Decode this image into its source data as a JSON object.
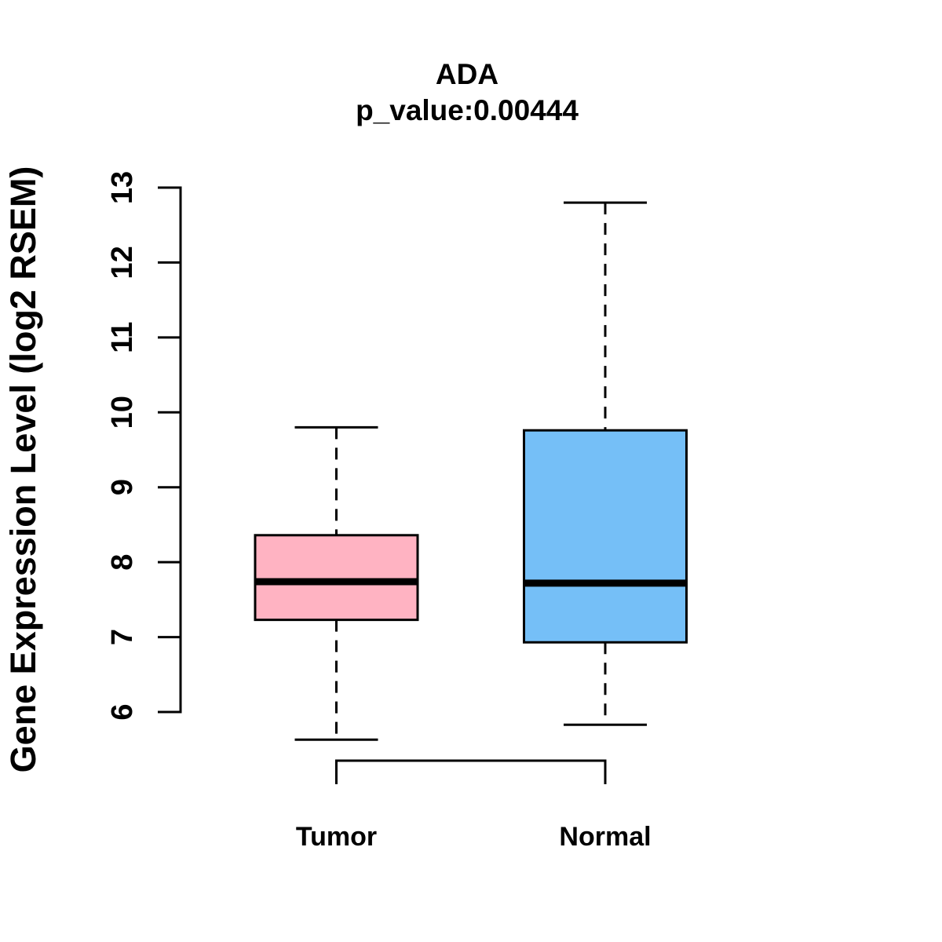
{
  "chart_data": {
    "type": "boxplot",
    "title": "ADA",
    "subtitle": "p_value:0.00444",
    "p_value": 0.00444,
    "gene": "ADA",
    "ylabel": "Gene Expression Level (log2 RSEM)",
    "xlabel": "",
    "ylim": [
      6,
      13
    ],
    "yticks": [
      6,
      7,
      8,
      9,
      10,
      11,
      12,
      13
    ],
    "grid": false,
    "legend": "none",
    "categories": [
      "Tumor",
      "Normal"
    ],
    "series": [
      {
        "name": "Tumor",
        "color": "#ffb3c2",
        "whisker_low": 5.63,
        "q1": 7.23,
        "median": 7.74,
        "q3": 8.36,
        "whisker_high": 9.8
      },
      {
        "name": "Normal",
        "color": "#75bff7",
        "whisker_low": 5.83,
        "q1": 6.93,
        "median": 7.72,
        "q3": 9.76,
        "whisker_high": 12.8
      }
    ],
    "comparison_bracket": {
      "from": "Tumor",
      "to": "Normal"
    },
    "line_color": "#000000",
    "background_color": "#ffffff"
  }
}
